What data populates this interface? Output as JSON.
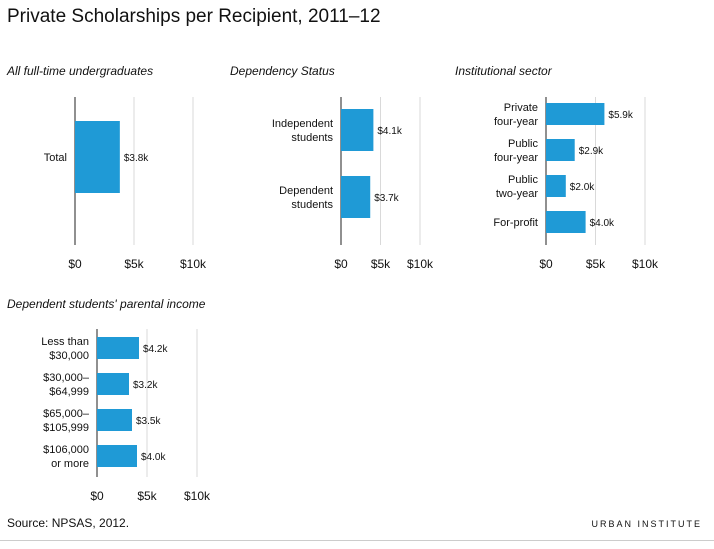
{
  "title": "Private Scholarships per Recipient, 2011–12",
  "source": "Source: NPSAS, 2012.",
  "brand": "URBAN INSTITUTE",
  "colors": {
    "bar": "#1f9ad6",
    "axis": "#222222",
    "grid": "#d9d9d9"
  },
  "chart_data": [
    {
      "type": "bar",
      "orientation": "horizontal",
      "title": "All full-time undergraduates",
      "categories": [
        [
          "Total"
        ]
      ],
      "values": [
        3.8
      ],
      "value_labels": [
        "$3.8k"
      ],
      "xticks": [
        "$0",
        "$5k",
        "$10k"
      ],
      "xlim": [
        0,
        10
      ]
    },
    {
      "type": "bar",
      "orientation": "horizontal",
      "title": "Dependency Status",
      "categories": [
        [
          "Independent",
          "students"
        ],
        [
          "Dependent",
          "students"
        ]
      ],
      "values": [
        4.1,
        3.7
      ],
      "value_labels": [
        "$4.1k",
        "$3.7k"
      ],
      "xticks": [
        "$0",
        "$5k",
        "$10k"
      ],
      "xlim": [
        0,
        10
      ]
    },
    {
      "type": "bar",
      "orientation": "horizontal",
      "title": "Institutional sector",
      "categories": [
        [
          "Private",
          "four-year"
        ],
        [
          "Public",
          "four-year"
        ],
        [
          "Public",
          "two-year"
        ],
        [
          "For-profit"
        ]
      ],
      "values": [
        5.9,
        2.9,
        2.0,
        4.0
      ],
      "value_labels": [
        "$5.9k",
        "$2.9k",
        "$2.0k",
        "$4.0k"
      ],
      "xticks": [
        "$0",
        "$5k",
        "$10k"
      ],
      "xlim": [
        0,
        10
      ]
    },
    {
      "type": "bar",
      "orientation": "horizontal",
      "title": "Dependent students' parental income",
      "categories": [
        [
          "Less than",
          "$30,000"
        ],
        [
          "$30,000–",
          "$64,999"
        ],
        [
          "$65,000–",
          "$105,999"
        ],
        [
          "$106,000",
          "or more"
        ]
      ],
      "values": [
        4.2,
        3.2,
        3.5,
        4.0
      ],
      "value_labels": [
        "$4.2k",
        "$3.2k",
        "$3.5k",
        "$4.0k"
      ],
      "xticks": [
        "$0",
        "$5k",
        "$10k"
      ],
      "xlim": [
        0,
        10
      ]
    }
  ]
}
